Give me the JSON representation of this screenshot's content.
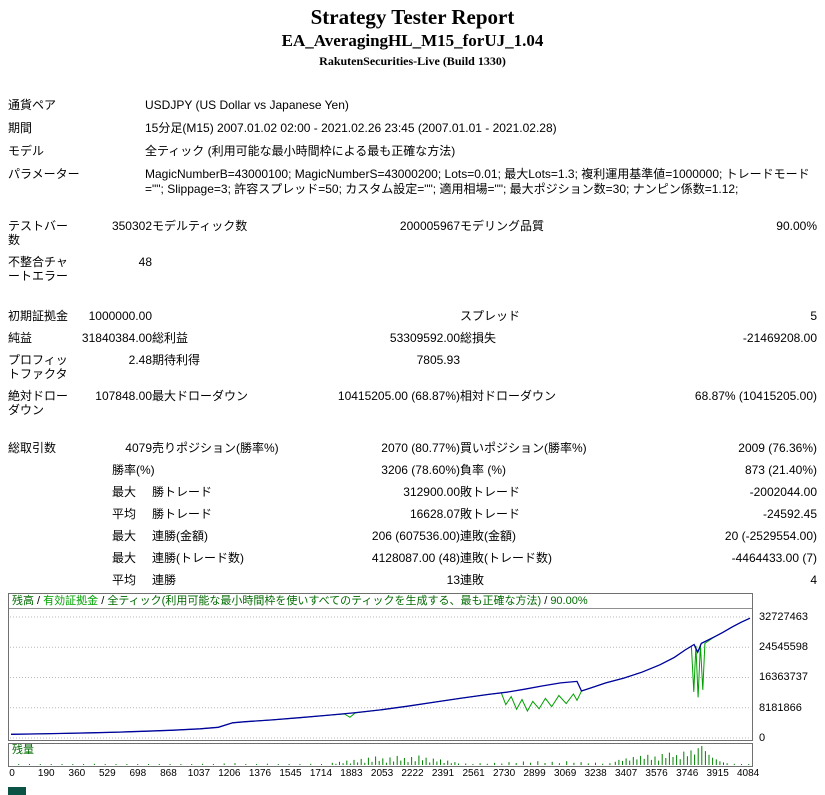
{
  "header": {
    "title": "Strategy Tester Report",
    "ea_name": "EA_AveragingHL_M15_forUJ_1.04",
    "server_build": "RakutenSecurities-Live (Build 1330)"
  },
  "info_rows": [
    {
      "label": "通貨ペア",
      "value": "USDJPY (US Dollar vs Japanese Yen)"
    },
    {
      "label": "期間",
      "value": "15分足(M15) 2007.01.02 02:00 - 2021.02.26 23:45 (2007.01.01 - 2021.02.28)"
    },
    {
      "label": "モデル",
      "value": "全ティック (利用可能な最小時間枠による最も正確な方法)"
    },
    {
      "label": "パラメーター",
      "value": "MagicNumberB=43000100; MagicNumberS=43000200; Lots=0.01; 最大Lots=1.3; 複利運用基準値=1000000; トレードモード=\"\"; Slippage=3; 許容スプレッド=50; カスタム設定=\"\"; 適用相場=\"\"; 最大ポジション数=30; ナンピン係数=1.12;"
    }
  ],
  "stat_rows": [
    {
      "cells": [
        {
          "t": "テストバー数",
          "c": "lbl"
        },
        {
          "t": "350302",
          "c": "num"
        },
        {
          "t": "モデルティック数",
          "c": "lbl"
        },
        {
          "t": "200005967",
          "c": "num"
        },
        {
          "t": "モデリング品質",
          "c": "lbl"
        },
        {
          "t": "90.00%",
          "c": "num"
        }
      ]
    },
    {
      "cells": [
        {
          "t": "不整合チャートエラー",
          "c": "lbl"
        },
        {
          "t": "48",
          "c": "num"
        },
        {
          "t": "",
          "c": "lbl"
        },
        {
          "t": "",
          "c": "num"
        },
        {
          "t": "",
          "c": "lbl"
        },
        {
          "t": "",
          "c": "num"
        }
      ]
    },
    {
      "spacer": 18
    },
    {
      "cells": [
        {
          "t": "初期証拠金",
          "c": "lbl"
        },
        {
          "t": "1000000.00",
          "c": "num"
        },
        {
          "t": "",
          "c": "lbl"
        },
        {
          "t": "",
          "c": "num"
        },
        {
          "t": "スプレッド",
          "c": "lbl"
        },
        {
          "t": "5",
          "c": "num"
        }
      ]
    },
    {
      "cells": [
        {
          "t": "純益",
          "c": "lbl"
        },
        {
          "t": "31840384.00",
          "c": "num"
        },
        {
          "t": "総利益",
          "c": "lbl"
        },
        {
          "t": "53309592.00",
          "c": "num"
        },
        {
          "t": "総損失",
          "c": "lbl"
        },
        {
          "t": "-21469208.00",
          "c": "num"
        }
      ]
    },
    {
      "cells": [
        {
          "t": "プロフィットファクタ",
          "c": "lbl"
        },
        {
          "t": "2.48",
          "c": "num"
        },
        {
          "t": "期待利得",
          "c": "lbl"
        },
        {
          "t": "7805.93",
          "c": "num"
        },
        {
          "t": "",
          "c": "lbl"
        },
        {
          "t": "",
          "c": "num"
        }
      ]
    },
    {
      "cells": [
        {
          "t": "絶対ドローダウン",
          "c": "lbl"
        },
        {
          "t": "107848.00",
          "c": "num"
        },
        {
          "t": "最大ドローダウン",
          "c": "lbl"
        },
        {
          "t": "10415205.00 (68.87%)",
          "c": "num"
        },
        {
          "t": "相対ドローダウン",
          "c": "lbl"
        },
        {
          "t": "68.87% (10415205.00)",
          "c": "num"
        }
      ]
    },
    {
      "spacer": 16
    },
    {
      "cells": [
        {
          "t": "総取引数",
          "c": "lbl"
        },
        {
          "t": "4079",
          "c": "num"
        },
        {
          "t": "売りポジション(勝率%)",
          "c": "lbl"
        },
        {
          "t": "2070 (80.77%)",
          "c": "num"
        },
        {
          "t": "買いポジション(勝率%)",
          "c": "lbl"
        },
        {
          "t": "2009 (76.36%)",
          "c": "num"
        }
      ]
    },
    {
      "cells": [
        {
          "t": "",
          "c": "lbl"
        },
        {
          "t": "勝率(%)",
          "c": "sub"
        },
        {
          "t": "",
          "c": "lbl"
        },
        {
          "t": "3206 (78.60%)",
          "c": "num"
        },
        {
          "t": "負率 (%)",
          "c": "lbl"
        },
        {
          "t": "873 (21.40%)",
          "c": "num"
        }
      ]
    },
    {
      "cells": [
        {
          "t": "",
          "c": "lbl"
        },
        {
          "t": "最大",
          "c": "sub"
        },
        {
          "t": "勝トレード",
          "c": "lbl"
        },
        {
          "t": "312900.00",
          "c": "num"
        },
        {
          "t": "敗トレード",
          "c": "lbl"
        },
        {
          "t": "-2002044.00",
          "c": "num"
        }
      ]
    },
    {
      "cells": [
        {
          "t": "",
          "c": "lbl"
        },
        {
          "t": "平均",
          "c": "sub"
        },
        {
          "t": "勝トレード",
          "c": "lbl"
        },
        {
          "t": "16628.07",
          "c": "num"
        },
        {
          "t": "敗トレード",
          "c": "lbl"
        },
        {
          "t": "-24592.45",
          "c": "num"
        }
      ]
    },
    {
      "cells": [
        {
          "t": "",
          "c": "lbl"
        },
        {
          "t": "最大",
          "c": "sub"
        },
        {
          "t": "連勝(金額)",
          "c": "lbl"
        },
        {
          "t": "206 (607536.00)",
          "c": "num"
        },
        {
          "t": "連敗(金額)",
          "c": "lbl"
        },
        {
          "t": "20 (-2529554.00)",
          "c": "num"
        }
      ]
    },
    {
      "cells": [
        {
          "t": "",
          "c": "lbl"
        },
        {
          "t": "最大",
          "c": "sub"
        },
        {
          "t": "連勝(トレード数)",
          "c": "lbl"
        },
        {
          "t": "4128087.00 (48)",
          "c": "num"
        },
        {
          "t": "連敗(トレード数)",
          "c": "lbl"
        },
        {
          "t": "-4464433.00 (7)",
          "c": "num"
        }
      ]
    },
    {
      "cells": [
        {
          "t": "",
          "c": "lbl"
        },
        {
          "t": "平均",
          "c": "sub"
        },
        {
          "t": "連勝",
          "c": "lbl"
        },
        {
          "t": "13",
          "c": "num"
        },
        {
          "t": "連敗",
          "c": "lbl"
        },
        {
          "t": "4",
          "c": "num"
        }
      ]
    }
  ],
  "chart_data": {
    "type": "line",
    "legend_separator": " / ",
    "legend": [
      {
        "text": "残高",
        "color": "#006A00"
      },
      {
        "text": "有効証拠金",
        "color": "#00A300"
      },
      {
        "text": "全ティック(利用可能な最小時間枠を使いすべてのティックを生成する、最も正確な方法)",
        "color": "#006A00"
      },
      {
        "text": "90.00%",
        "color": "#006A00"
      }
    ],
    "x_range": [
      0,
      4100
    ],
    "y_range": [
      0,
      32727463
    ],
    "y_ticks": [
      32727463,
      24545598,
      16363737,
      8181866,
      0
    ],
    "x_ticks": [
      0,
      190,
      360,
      529,
      698,
      868,
      1037,
      1206,
      1376,
      1545,
      1714,
      1883,
      2053,
      2222,
      2391,
      2561,
      2730,
      2899,
      3069,
      3238,
      3407,
      3576,
      3746,
      3915,
      4084
    ],
    "grid_color": "#b8b8b8",
    "y_unit": "JPY (values in points below are millions of JPY)",
    "series": [
      {
        "name": "残高 (balance)",
        "color": "#0000A0",
        "width": 1.3,
        "points": [
          [
            0,
            1.0
          ],
          [
            150,
            1.1
          ],
          [
            300,
            1.25
          ],
          [
            450,
            1.4
          ],
          [
            600,
            1.6
          ],
          [
            750,
            1.85
          ],
          [
            900,
            2.1
          ],
          [
            1050,
            2.5
          ],
          [
            1150,
            2.9
          ],
          [
            1230,
            4.1
          ],
          [
            1300,
            4.4
          ],
          [
            1450,
            4.9
          ],
          [
            1600,
            5.5
          ],
          [
            1750,
            6.1
          ],
          [
            1900,
            6.8
          ],
          [
            2050,
            7.6
          ],
          [
            2200,
            8.6
          ],
          [
            2350,
            9.7
          ],
          [
            2500,
            10.8
          ],
          [
            2650,
            11.8
          ],
          [
            2750,
            12.4
          ],
          [
            2850,
            13.2
          ],
          [
            2950,
            14.1
          ],
          [
            3050,
            14.9
          ],
          [
            3140,
            15.3
          ],
          [
            3165,
            12.7
          ],
          [
            3220,
            13.6
          ],
          [
            3300,
            14.9
          ],
          [
            3400,
            16.2
          ],
          [
            3500,
            17.8
          ],
          [
            3600,
            19.8
          ],
          [
            3680,
            21.8
          ],
          [
            3740,
            23.8
          ],
          [
            3790,
            25.3
          ],
          [
            3810,
            23.2
          ],
          [
            3830,
            25.6
          ],
          [
            3900,
            27.3
          ],
          [
            3950,
            28.6
          ],
          [
            4000,
            30.0
          ],
          [
            4050,
            31.3
          ],
          [
            4100,
            32.4
          ]
        ]
      },
      {
        "name": "有効証拠金 (equity)",
        "color": "#00A000",
        "width": 1,
        "points": [
          [
            0,
            1.0
          ],
          [
            150,
            1.1
          ],
          [
            300,
            1.25
          ],
          [
            450,
            1.4
          ],
          [
            600,
            1.6
          ],
          [
            750,
            1.85
          ],
          [
            900,
            2.1
          ],
          [
            1050,
            2.5
          ],
          [
            1150,
            2.9
          ],
          [
            1230,
            4.1
          ],
          [
            1300,
            4.4
          ],
          [
            1450,
            4.9
          ],
          [
            1600,
            5.5
          ],
          [
            1750,
            6.1
          ],
          [
            1850,
            6.5
          ],
          [
            1880,
            5.6
          ],
          [
            1910,
            6.8
          ],
          [
            2050,
            7.6
          ],
          [
            2200,
            8.6
          ],
          [
            2350,
            9.7
          ],
          [
            2500,
            10.8
          ],
          [
            2650,
            11.8
          ],
          [
            2720,
            12.2
          ],
          [
            2745,
            9.0
          ],
          [
            2775,
            11.2
          ],
          [
            2805,
            7.8
          ],
          [
            2835,
            10.4
          ],
          [
            2865,
            7.3
          ],
          [
            2895,
            9.9
          ],
          [
            2930,
            7.9
          ],
          [
            2965,
            10.7
          ],
          [
            3000,
            8.5
          ],
          [
            3040,
            11.5
          ],
          [
            3080,
            9.3
          ],
          [
            3120,
            11.9
          ],
          [
            3140,
            10.2
          ],
          [
            3165,
            12.7
          ],
          [
            3220,
            13.6
          ],
          [
            3300,
            14.9
          ],
          [
            3400,
            16.2
          ],
          [
            3500,
            17.8
          ],
          [
            3600,
            19.8
          ],
          [
            3680,
            21.8
          ],
          [
            3740,
            23.8
          ],
          [
            3775,
            24.8
          ],
          [
            3788,
            12.5
          ],
          [
            3800,
            24.9
          ],
          [
            3812,
            11.0
          ],
          [
            3825,
            25.2
          ],
          [
            3838,
            13.0
          ],
          [
            3850,
            25.6
          ],
          [
            3900,
            27.3
          ],
          [
            3950,
            28.6
          ],
          [
            4000,
            30.0
          ],
          [
            4050,
            31.3
          ],
          [
            4100,
            32.4
          ]
        ]
      }
    ],
    "lots": {
      "label": "残量",
      "label_color": "#006A00",
      "bar_color": "#008000",
      "max": 1.3,
      "bars": [
        [
          40,
          0.04
        ],
        [
          100,
          0.03
        ],
        [
          160,
          0.05
        ],
        [
          220,
          0.03
        ],
        [
          280,
          0.06
        ],
        [
          340,
          0.04
        ],
        [
          400,
          0.05
        ],
        [
          460,
          0.08
        ],
        [
          520,
          0.04
        ],
        [
          580,
          0.06
        ],
        [
          640,
          0.03
        ],
        [
          700,
          0.07
        ],
        [
          760,
          0.04
        ],
        [
          820,
          0.05
        ],
        [
          880,
          0.04
        ],
        [
          940,
          0.06
        ],
        [
          1000,
          0.05
        ],
        [
          1060,
          0.08
        ],
        [
          1120,
          0.06
        ],
        [
          1180,
          0.1
        ],
        [
          1240,
          0.12
        ],
        [
          1300,
          0.07
        ],
        [
          1360,
          0.06
        ],
        [
          1420,
          0.09
        ],
        [
          1480,
          0.05
        ],
        [
          1540,
          0.07
        ],
        [
          1600,
          0.05
        ],
        [
          1660,
          0.08
        ],
        [
          1720,
          0.06
        ],
        [
          1780,
          0.15
        ],
        [
          1800,
          0.08
        ],
        [
          1820,
          0.22
        ],
        [
          1840,
          0.12
        ],
        [
          1860,
          0.3
        ],
        [
          1880,
          0.1
        ],
        [
          1900,
          0.35
        ],
        [
          1920,
          0.18
        ],
        [
          1940,
          0.42
        ],
        [
          1960,
          0.15
        ],
        [
          1980,
          0.5
        ],
        [
          2000,
          0.22
        ],
        [
          2020,
          0.58
        ],
        [
          2040,
          0.28
        ],
        [
          2060,
          0.45
        ],
        [
          2080,
          0.16
        ],
        [
          2100,
          0.52
        ],
        [
          2120,
          0.24
        ],
        [
          2140,
          0.62
        ],
        [
          2160,
          0.3
        ],
        [
          2180,
          0.48
        ],
        [
          2200,
          0.2
        ],
        [
          2220,
          0.55
        ],
        [
          2240,
          0.26
        ],
        [
          2260,
          0.65
        ],
        [
          2280,
          0.32
        ],
        [
          2300,
          0.5
        ],
        [
          2320,
          0.18
        ],
        [
          2340,
          0.44
        ],
        [
          2360,
          0.24
        ],
        [
          2380,
          0.38
        ],
        [
          2400,
          0.14
        ],
        [
          2420,
          0.3
        ],
        [
          2440,
          0.12
        ],
        [
          2460,
          0.2
        ],
        [
          2480,
          0.1
        ],
        [
          2520,
          0.1
        ],
        [
          2560,
          0.07
        ],
        [
          2600,
          0.12
        ],
        [
          2640,
          0.08
        ],
        [
          2680,
          0.15
        ],
        [
          2720,
          0.1
        ],
        [
          2760,
          0.2
        ],
        [
          2800,
          0.13
        ],
        [
          2840,
          0.24
        ],
        [
          2880,
          0.16
        ],
        [
          2920,
          0.26
        ],
        [
          2960,
          0.14
        ],
        [
          3000,
          0.22
        ],
        [
          3040,
          0.12
        ],
        [
          3080,
          0.26
        ],
        [
          3120,
          0.15
        ],
        [
          3160,
          0.2
        ],
        [
          3200,
          0.11
        ],
        [
          3240,
          0.16
        ],
        [
          3280,
          0.09
        ],
        [
          3320,
          0.12
        ],
        [
          3350,
          0.22
        ],
        [
          3370,
          0.35
        ],
        [
          3390,
          0.28
        ],
        [
          3410,
          0.45
        ],
        [
          3430,
          0.3
        ],
        [
          3450,
          0.55
        ],
        [
          3470,
          0.38
        ],
        [
          3490,
          0.62
        ],
        [
          3510,
          0.42
        ],
        [
          3530,
          0.7
        ],
        [
          3550,
          0.35
        ],
        [
          3570,
          0.58
        ],
        [
          3590,
          0.3
        ],
        [
          3610,
          0.75
        ],
        [
          3630,
          0.48
        ],
        [
          3650,
          0.85
        ],
        [
          3670,
          0.55
        ],
        [
          3690,
          0.68
        ],
        [
          3710,
          0.4
        ],
        [
          3730,
          0.92
        ],
        [
          3750,
          0.6
        ],
        [
          3770,
          1.0
        ],
        [
          3790,
          0.72
        ],
        [
          3810,
          1.15
        ],
        [
          3830,
          1.3
        ],
        [
          3850,
          0.95
        ],
        [
          3870,
          0.7
        ],
        [
          3890,
          0.5
        ],
        [
          3910,
          0.38
        ],
        [
          3930,
          0.25
        ],
        [
          3950,
          0.18
        ],
        [
          3970,
          0.12
        ],
        [
          4010,
          0.08
        ],
        [
          4050,
          0.06
        ],
        [
          4090,
          0.04
        ]
      ]
    }
  }
}
